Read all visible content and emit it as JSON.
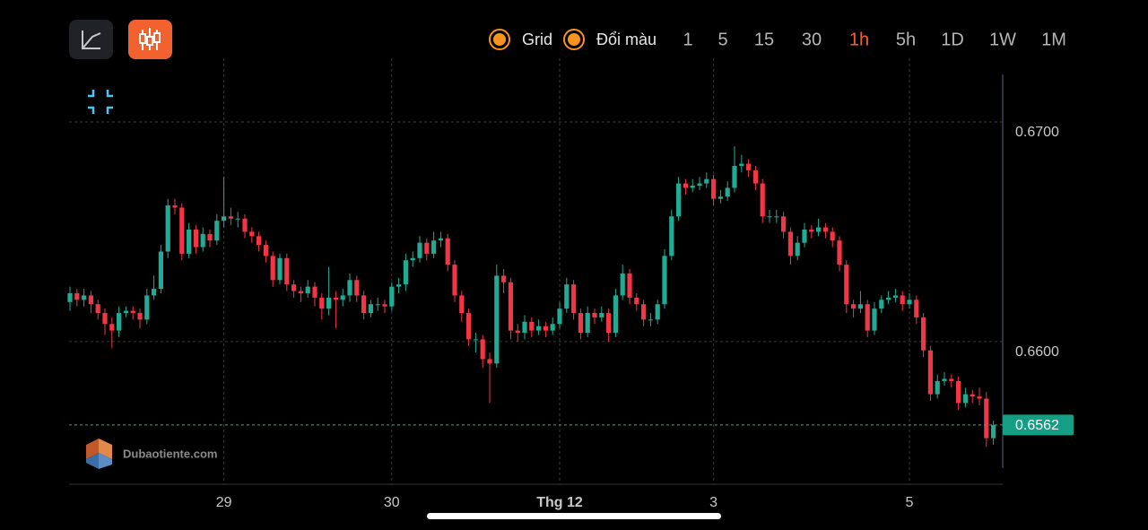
{
  "toolbar": {
    "toggles": [
      {
        "label": "Grid",
        "checked": true
      },
      {
        "label": "Đổi màu",
        "checked": true
      }
    ],
    "intervals": [
      "1",
      "5",
      "15",
      "30",
      "1h",
      "5h",
      "1D",
      "1W",
      "1M"
    ],
    "active_interval": 4
  },
  "watermark": "Dubaotiente.com",
  "chart_data": {
    "type": "candlestick",
    "up_color": "#22ab94",
    "down_color": "#f23645",
    "grid": true,
    "ylim": [
      0.6535,
      0.6729
    ],
    "yticks": [
      {
        "value": 0.66,
        "label": "0.6600"
      },
      {
        "value": 0.67,
        "label": "0.6700"
      }
    ],
    "current_price": 0.6562,
    "categories": [
      null,
      null,
      null,
      null,
      null,
      null,
      null,
      null,
      null,
      null,
      null,
      null,
      null,
      null,
      null,
      null,
      null,
      null,
      null,
      null,
      null,
      null,
      "29",
      null,
      null,
      null,
      null,
      null,
      null,
      null,
      null,
      null,
      null,
      null,
      null,
      null,
      null,
      null,
      null,
      null,
      null,
      null,
      null,
      null,
      null,
      null,
      "30",
      null,
      null,
      null,
      null,
      null,
      null,
      null,
      null,
      null,
      null,
      null,
      null,
      null,
      null,
      null,
      null,
      null,
      null,
      null,
      null,
      null,
      null,
      null,
      "Thg 12",
      null,
      null,
      null,
      null,
      null,
      null,
      null,
      null,
      null,
      null,
      null,
      null,
      null,
      null,
      null,
      null,
      null,
      null,
      null,
      null,
      null,
      "3",
      null,
      null,
      null,
      null,
      null,
      null,
      null,
      null,
      null,
      null,
      null,
      null,
      null,
      null,
      null,
      null,
      null,
      null,
      null,
      null,
      null,
      null,
      null,
      null,
      null,
      null,
      null,
      "5",
      null,
      null,
      null,
      null,
      null,
      null,
      null,
      null,
      null,
      null,
      null,
      null
    ],
    "open": [
      0.6618,
      0.6622,
      0.6619,
      0.6621,
      0.6617,
      0.6613,
      0.6608,
      0.6605,
      0.6613,
      0.6614,
      0.6613,
      0.661,
      0.6621,
      0.6624,
      0.6641,
      0.6662,
      0.6661,
      0.664,
      0.6651,
      0.6643,
      0.6649,
      0.6646,
      0.6655,
      0.6657,
      0.6656,
      0.6656,
      0.665,
      0.6648,
      0.6644,
      0.6639,
      0.6628,
      0.6638,
      0.6626,
      0.6623,
      0.6622,
      0.6625,
      0.662,
      0.6615,
      0.662,
      0.6619,
      0.6621,
      0.6628,
      0.6621,
      0.6613,
      0.6617,
      0.6617,
      0.6616,
      0.6625,
      0.6626,
      0.6637,
      0.6638,
      0.6645,
      0.664,
      0.6646,
      0.6647,
      0.6635,
      0.6621,
      0.6613,
      0.6601,
      0.6601,
      0.6592,
      0.659,
      0.663,
      0.6627,
      0.6605,
      0.6604,
      0.6609,
      0.6605,
      0.6607,
      0.6605,
      0.6608,
      0.6615,
      0.6626,
      0.6613,
      0.6604,
      0.6613,
      0.6611,
      0.6613,
      0.6604,
      0.6621,
      0.6631,
      0.662,
      0.6617,
      0.661,
      0.661,
      0.6617,
      0.6639,
      0.6657,
      0.6672,
      0.667,
      0.6671,
      0.6672,
      0.6674,
      0.6665,
      0.6666,
      0.667,
      0.668,
      0.6681,
      0.6678,
      0.6672,
      0.6657,
      0.6657,
      0.6657,
      0.665,
      0.6639,
      0.6645,
      0.6651,
      0.665,
      0.6652,
      0.665,
      0.6646,
      0.6635,
      0.6617,
      0.6615,
      0.6617,
      0.6605,
      0.6615,
      0.6619,
      0.662,
      0.6621,
      0.6617,
      0.6619,
      0.6611,
      0.6596,
      0.6576,
      0.6582,
      0.6583,
      0.6582,
      0.6572,
      0.6576,
      0.6575,
      0.6574,
      0.6556
    ],
    "high": [
      0.6625,
      0.6624,
      0.6624,
      0.6623,
      0.6619,
      0.6615,
      0.6611,
      0.6616,
      0.6616,
      0.6616,
      0.6615,
      0.6624,
      0.663,
      0.6644,
      0.6665,
      0.6665,
      0.6663,
      0.6654,
      0.6653,
      0.6652,
      0.6651,
      0.6658,
      0.6675,
      0.6661,
      0.6659,
      0.6658,
      0.6652,
      0.665,
      0.6646,
      0.6641,
      0.664,
      0.664,
      0.6628,
      0.6625,
      0.6628,
      0.6627,
      0.6622,
      0.6634,
      0.6623,
      0.6624,
      0.6631,
      0.663,
      0.6623,
      0.6619,
      0.662,
      0.6619,
      0.6627,
      0.6629,
      0.664,
      0.6641,
      0.6648,
      0.6647,
      0.665,
      0.665,
      0.6649,
      0.6637,
      0.6623,
      0.6615,
      0.6604,
      0.6603,
      0.6595,
      0.6635,
      0.6633,
      0.6629,
      0.6608,
      0.6612,
      0.6611,
      0.661,
      0.6609,
      0.6611,
      0.6618,
      0.6629,
      0.6628,
      0.6615,
      0.6616,
      0.6615,
      0.6616,
      0.6615,
      0.6624,
      0.6635,
      0.6633,
      0.6622,
      0.6619,
      0.6613,
      0.6619,
      0.6642,
      0.666,
      0.6675,
      0.6674,
      0.6674,
      0.6675,
      0.6677,
      0.6676,
      0.6669,
      0.6673,
      0.6689,
      0.6685,
      0.6683,
      0.668,
      0.6674,
      0.666,
      0.666,
      0.6659,
      0.6652,
      0.6648,
      0.6654,
      0.6653,
      0.6656,
      0.6654,
      0.6652,
      0.6648,
      0.6637,
      0.6619,
      0.6623,
      0.6619,
      0.6618,
      0.6621,
      0.6623,
      0.6624,
      0.6623,
      0.6622,
      0.6621,
      0.6613,
      0.6598,
      0.6585,
      0.6586,
      0.6585,
      0.6584,
      0.6579,
      0.6578,
      0.6579,
      0.6577,
      0.6564
    ],
    "low": [
      0.6614,
      0.6616,
      0.6616,
      0.6613,
      0.661,
      0.6603,
      0.6597,
      0.6602,
      0.6611,
      0.661,
      0.6606,
      0.6608,
      0.6619,
      0.6622,
      0.6638,
      0.6658,
      0.6637,
      0.6638,
      0.664,
      0.6641,
      0.6643,
      0.6644,
      0.6652,
      0.6653,
      0.6652,
      0.6647,
      0.6645,
      0.6641,
      0.6636,
      0.6625,
      0.6626,
      0.6623,
      0.662,
      0.6618,
      0.662,
      0.6616,
      0.661,
      0.6612,
      0.6606,
      0.6616,
      0.6618,
      0.6618,
      0.661,
      0.6611,
      0.6614,
      0.6613,
      0.6614,
      0.6622,
      0.6623,
      0.6634,
      0.6636,
      0.6637,
      0.6638,
      0.6643,
      0.6632,
      0.6618,
      0.6609,
      0.6598,
      0.6595,
      0.6588,
      0.6572,
      0.6588,
      0.6622,
      0.6601,
      0.66,
      0.6601,
      0.6602,
      0.6603,
      0.6602,
      0.6603,
      0.6606,
      0.6613,
      0.661,
      0.6601,
      0.6602,
      0.6608,
      0.6609,
      0.66,
      0.6602,
      0.6619,
      0.6617,
      0.6614,
      0.6607,
      0.6607,
      0.6608,
      0.6615,
      0.6637,
      0.6655,
      0.6667,
      0.6668,
      0.6669,
      0.667,
      0.6662,
      0.6663,
      0.6664,
      0.6668,
      0.6677,
      0.6675,
      0.6669,
      0.6654,
      0.6654,
      0.6654,
      0.6647,
      0.6635,
      0.6637,
      0.6643,
      0.6647,
      0.6648,
      0.6647,
      0.6643,
      0.6632,
      0.6613,
      0.6611,
      0.6613,
      0.6602,
      0.6603,
      0.6613,
      0.6617,
      0.6618,
      0.6614,
      0.6615,
      0.6608,
      0.6593,
      0.6573,
      0.6574,
      0.658,
      0.6579,
      0.6569,
      0.657,
      0.6572,
      0.6571,
      0.6552,
      0.6553
    ],
    "close": [
      0.6622,
      0.6619,
      0.6621,
      0.6617,
      0.6613,
      0.6608,
      0.6605,
      0.6613,
      0.6614,
      0.6613,
      0.661,
      0.6621,
      0.6624,
      0.6641,
      0.6662,
      0.6661,
      0.664,
      0.6651,
      0.6643,
      0.6649,
      0.6646,
      0.6655,
      0.6657,
      0.6656,
      0.6656,
      0.665,
      0.6648,
      0.6644,
      0.6639,
      0.6628,
      0.6638,
      0.6626,
      0.6623,
      0.6622,
      0.6625,
      0.662,
      0.6615,
      0.662,
      0.6619,
      0.6621,
      0.6628,
      0.6621,
      0.6613,
      0.6617,
      0.6617,
      0.6616,
      0.6625,
      0.6626,
      0.6637,
      0.6638,
      0.6645,
      0.664,
      0.6646,
      0.6647,
      0.6635,
      0.6621,
      0.6613,
      0.6601,
      0.6601,
      0.6592,
      0.659,
      0.663,
      0.6627,
      0.6605,
      0.6604,
      0.6609,
      0.6605,
      0.6607,
      0.6605,
      0.6608,
      0.6615,
      0.6626,
      0.6613,
      0.6604,
      0.6613,
      0.6611,
      0.6613,
      0.6604,
      0.6621,
      0.6631,
      0.662,
      0.6617,
      0.661,
      0.661,
      0.6617,
      0.6639,
      0.6657,
      0.6672,
      0.667,
      0.6671,
      0.6672,
      0.6674,
      0.6665,
      0.6666,
      0.667,
      0.668,
      0.6681,
      0.6678,
      0.6672,
      0.6657,
      0.6657,
      0.6657,
      0.665,
      0.6639,
      0.6645,
      0.6651,
      0.665,
      0.6652,
      0.665,
      0.6646,
      0.6635,
      0.6617,
      0.6615,
      0.6617,
      0.6605,
      0.6615,
      0.6619,
      0.662,
      0.6621,
      0.6617,
      0.6619,
      0.6611,
      0.6596,
      0.6576,
      0.6582,
      0.6583,
      0.6582,
      0.6572,
      0.6576,
      0.6575,
      0.6574,
      0.6556,
      0.6562
    ]
  }
}
